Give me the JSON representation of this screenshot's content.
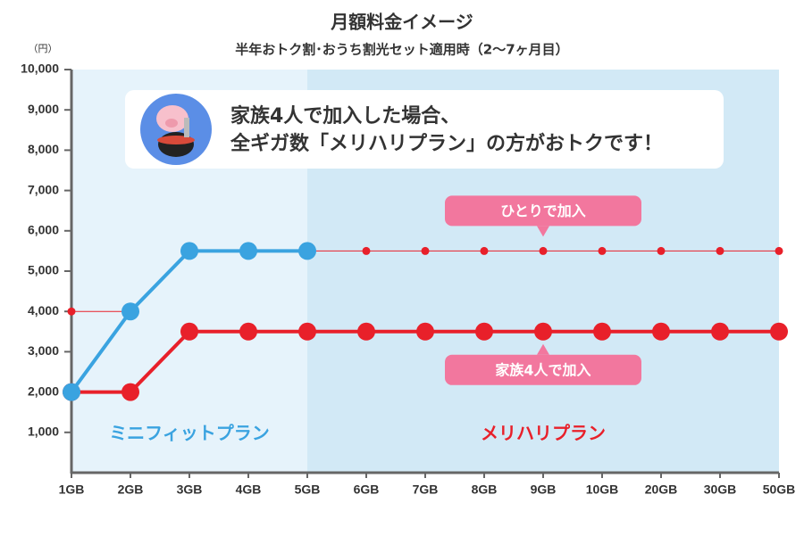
{
  "chart_data": {
    "type": "line",
    "title": "月額料金イメージ",
    "subtitle": "半年おトク割･おうち割光セット適用時（2〜7ヶ月目）",
    "y_unit": "（円）",
    "message": [
      "家族4人で加入した場合、",
      "全ギガ数「メリハリプラン」の方がおトクです！"
    ],
    "categories": [
      "1GB",
      "2GB",
      "3GB",
      "4GB",
      "5GB",
      "6GB",
      "7GB",
      "8GB",
      "9GB",
      "10GB",
      "20GB",
      "30GB",
      "50GB"
    ],
    "ylim": [
      0,
      10000
    ],
    "yticks": [
      {
        "value": 1000,
        "label": "1,000"
      },
      {
        "value": 2000,
        "label": "2,000"
      },
      {
        "value": 3000,
        "label": "3,000"
      },
      {
        "value": 4000,
        "label": "4,000"
      },
      {
        "value": 5000,
        "label": "5,000"
      },
      {
        "value": 6000,
        "label": "6,000"
      },
      {
        "value": 7000,
        "label": "7,000"
      },
      {
        "value": 8000,
        "label": "8,000"
      },
      {
        "value": 9000,
        "label": "9,000"
      },
      {
        "value": 10000,
        "label": "10,000"
      }
    ],
    "regions": [
      {
        "label": "ミニフィットプラン",
        "from": 0,
        "to": 4,
        "color": "#e6f3fb",
        "text_color": "#3aa3e0"
      },
      {
        "label": "メリハリプラン",
        "from": 4,
        "to": 12,
        "color": "#d2e9f6",
        "text_color": "#e8202a"
      }
    ],
    "series": [
      {
        "color": "#e8202a",
        "style": "thin",
        "values": [
          4000,
          4000,
          null,
          null,
          5500,
          5500,
          5500,
          5500,
          5500,
          5500,
          5500,
          5500,
          5500
        ]
      },
      {
        "color": "#e8202a",
        "style": "thick",
        "values": [
          2000,
          2000,
          3500,
          3500,
          3500,
          3500,
          3500,
          3500,
          3500,
          3500,
          3500,
          3500,
          3500
        ]
      },
      {
        "color": "#3aa3e0",
        "style": "thick",
        "values": [
          2000,
          4000,
          5500,
          5500,
          5500,
          null,
          null,
          null,
          null,
          null,
          null,
          null,
          null
        ]
      }
    ],
    "callouts": [
      {
        "text": "ひとりで加入",
        "category": 8,
        "value": 5500,
        "side": "above"
      },
      {
        "text": "家族4人で加入",
        "category": 8,
        "value": 3500,
        "side": "below"
      }
    ]
  }
}
